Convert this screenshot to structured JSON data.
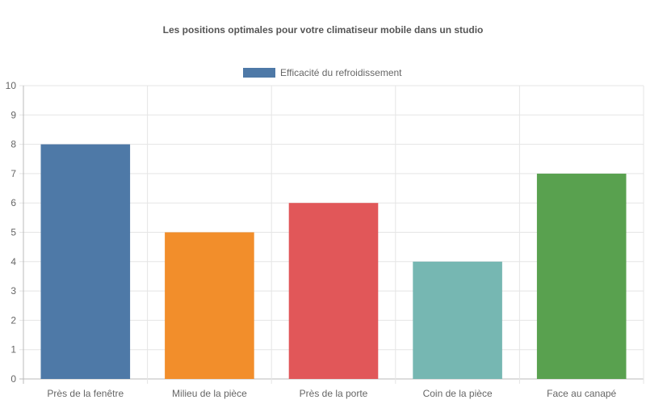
{
  "chart_data": {
    "type": "bar",
    "title": "Les positions optimales pour votre climatiseur mobile dans un studio",
    "categories": [
      "Près de la fenêtre",
      "Milieu de la pièce",
      "Près de la porte",
      "Coin de la pièce",
      "Face au canapé"
    ],
    "series": [
      {
        "name": "Efficacité du refroidissement",
        "values": [
          8,
          5,
          6,
          4,
          7
        ],
        "colors": [
          "#4e79a7",
          "#f28e2b",
          "#e15759",
          "#76b7b2",
          "#59a14f"
        ]
      }
    ],
    "legend_color": "#4e79a7",
    "ylim": [
      0,
      10
    ],
    "yticks": [
      0,
      1,
      2,
      3,
      4,
      5,
      6,
      7,
      8,
      9,
      10
    ],
    "grid": true,
    "legend_position": "top"
  }
}
